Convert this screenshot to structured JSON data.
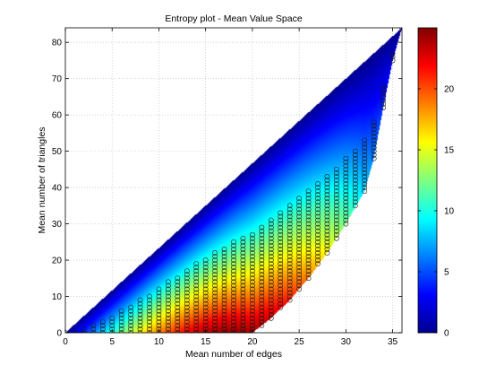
{
  "chart_data": {
    "type": "heatmap",
    "title": "Entropy plot - Mean Value Space",
    "xlabel": "Mean number of edges",
    "ylabel": "Mean number of triangles",
    "xlim": [
      0,
      36
    ],
    "ylim": [
      0,
      84
    ],
    "xticks": [
      0,
      5,
      10,
      15,
      20,
      25,
      30,
      35
    ],
    "yticks": [
      0,
      10,
      20,
      30,
      40,
      50,
      60,
      70,
      80
    ],
    "grid": true,
    "colormap": "jet",
    "colorbar": {
      "range": [
        0,
        25
      ],
      "ticks": [
        0,
        5,
        10,
        15,
        20
      ],
      "placement": "right"
    },
    "region": {
      "upper_bound": [
        [
          0,
          0
        ],
        [
          36,
          84
        ]
      ],
      "lower_bound": [
        [
          0,
          0
        ],
        [
          20,
          0
        ],
        [
          22,
          4
        ],
        [
          24,
          9
        ],
        [
          26,
          15
        ],
        [
          28,
          22
        ],
        [
          30,
          30
        ],
        [
          32,
          39
        ],
        [
          33,
          48
        ],
        [
          34,
          62
        ],
        [
          35,
          75
        ],
        [
          36,
          84
        ]
      ],
      "peak_entropy": 24.5
    },
    "markers": {
      "symbol": "circle",
      "description": "sampled mean-value points (integer edges, integer triangles) within the lower region"
    }
  }
}
